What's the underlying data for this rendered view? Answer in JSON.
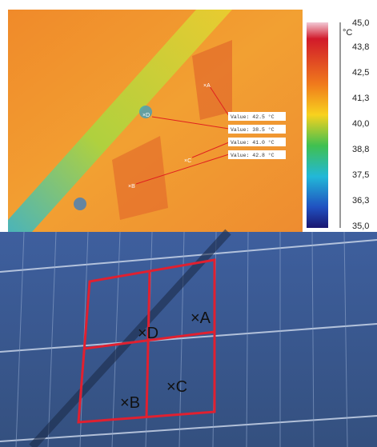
{
  "thermal": {
    "points": [
      "×A",
      "×D",
      "×C",
      "×B"
    ],
    "values": [
      "Value: 42.5 °C",
      "Value: 38.5 °C",
      "Value: 41.0 °C",
      "Value: 42.8 °C"
    ]
  },
  "colorbar": {
    "unit": "°C",
    "labels": [
      "45,0",
      "43,8",
      "42,5",
      "41,3",
      "40,0",
      "38,8",
      "37,5",
      "36,3",
      "35,0"
    ]
  },
  "photo": {
    "labels": [
      "×A",
      "×D",
      "×B",
      "×C"
    ]
  }
}
